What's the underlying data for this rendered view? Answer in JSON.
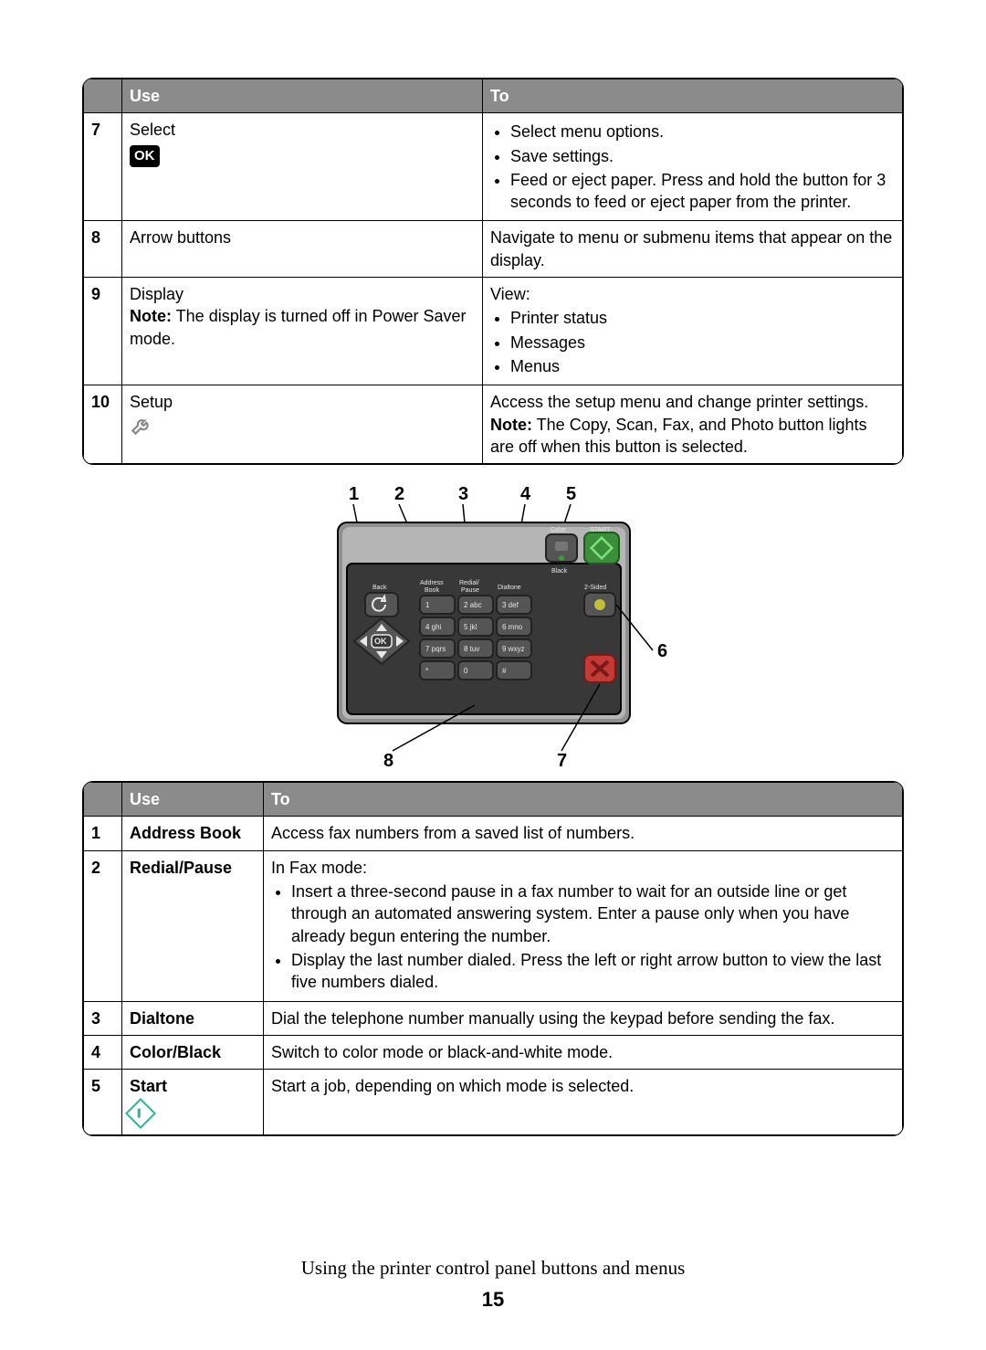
{
  "table1": {
    "header_bg": "#8b8b8b",
    "header_fg": "#ffffff",
    "col_use": "Use",
    "col_to": "To",
    "rows": [
      {
        "num": "7",
        "use_text": "Select",
        "use_icon": "ok",
        "to_bullets": [
          "Select menu options.",
          "Save settings.",
          "Feed or eject paper. Press and hold the button for 3 seconds to feed or eject paper from the printer."
        ]
      },
      {
        "num": "8",
        "use_text": "Arrow buttons",
        "to_text": "Navigate to menu or submenu items that appear on the display."
      },
      {
        "num": "9",
        "use_text": "Display",
        "use_note_label": "Note:",
        "use_note_text": " The display is turned off in Power Saver mode.",
        "to_lead": "View:",
        "to_bullets": [
          "Printer status",
          "Messages",
          "Menus"
        ]
      },
      {
        "num": "10",
        "use_text": "Setup",
        "use_icon": "wrench",
        "to_text": "Access the setup menu and change printer settings.",
        "to_note_label": "Note:",
        "to_note_text": " The Copy, Scan, Fax, and Photo button lights are off when this button is selected."
      }
    ]
  },
  "panel": {
    "callout_top": {
      "1": "1",
      "2": "2",
      "3": "3",
      "4": "4",
      "5": "5"
    },
    "callout_side": {
      "6": "6"
    },
    "callout_bottom": {
      "7": "7",
      "8": "8"
    },
    "labels": {
      "back": "Back",
      "address_book": "Address\nBook",
      "redial_pause": "Redial/\nPause",
      "dialtone": "Dialtone",
      "color": "Color",
      "black": "Black",
      "start": "START",
      "two_sided": "2-Sided"
    },
    "keypad": [
      "1",
      "2 abc",
      "3 def",
      "4 ghi",
      "5 jkl",
      "6 mno",
      "7 pqrs",
      "8 tuv",
      "9 wxyz",
      "*",
      "0",
      "#"
    ],
    "ok_label": "OK",
    "colors": {
      "bezel_outer": "#8f8f8f",
      "bezel_highlight": "#b5b5b5",
      "panel_dark": "#383838",
      "key_dark": "#555555",
      "key_border": "#222222",
      "color_btn_border": "#5a5a5a",
      "color_led": "#3b9b3b",
      "start_btn": "#3b8f3b",
      "start_glyph": "#7de07d",
      "cancel_btn": "#c43a36",
      "cancel_x": "#7a1a16",
      "twosided_led": "#bfbf3a",
      "label_text": "#e8e8e8",
      "callout_line": "#000000"
    }
  },
  "table2": {
    "col_use": "Use",
    "col_to": "To",
    "rows": [
      {
        "num": "1",
        "use_bold": "Address Book",
        "to_text": "Access fax numbers from a saved list of numbers."
      },
      {
        "num": "2",
        "use_bold": "Redial/Pause",
        "to_lead": "In Fax mode:",
        "to_bullets": [
          "Insert a three-second pause in a fax number to wait for an outside line or get through an automated answering system. Enter a pause only when you have already begun entering the number.",
          "Display the last number dialed. Press the left or right arrow button to view the last five numbers dialed."
        ]
      },
      {
        "num": "3",
        "use_bold": "Dialtone",
        "to_text": "Dial the telephone number manually using the keypad before sending the fax."
      },
      {
        "num": "4",
        "use_bold": "Color/Black",
        "to_text": "Switch to color mode or black-and-white mode."
      },
      {
        "num": "5",
        "use_bold": "Start",
        "use_icon": "start-diamond",
        "to_text": "Start a job, depending on which mode is selected."
      }
    ]
  },
  "footer_text": "Using the printer control panel buttons and menus",
  "page_number": "15"
}
